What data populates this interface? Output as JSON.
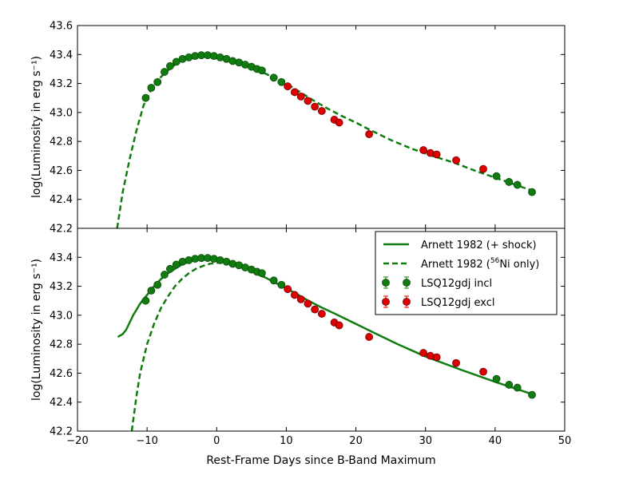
{
  "chart_data": {
    "type": "line",
    "xlabel": "Rest-Frame Days since B-Band Maximum",
    "xlim": [
      -20,
      50
    ],
    "xticks": [
      -20,
      -10,
      0,
      10,
      20,
      30,
      40,
      50
    ],
    "xtick_labels": [
      "−20",
      "−10",
      "0",
      "10",
      "20",
      "30",
      "40",
      "50"
    ],
    "colors": {
      "green": "#107c10",
      "red": "#e00000",
      "green_edge": "#0a4a0a",
      "red_edge": "#6a0000"
    },
    "panels": [
      {
        "id": "top",
        "ylabel": "log(Luminosity in erg s⁻¹)",
        "ylim": [
          42.2,
          43.6
        ],
        "yticks": [
          42.2,
          42.4,
          42.6,
          42.8,
          43.0,
          43.2,
          43.4,
          43.6
        ],
        "ytick_labels": [
          "42.2",
          "42.4",
          "42.6",
          "42.8",
          "43.0",
          "43.2",
          "43.4",
          "43.6"
        ],
        "series": [
          {
            "name": "Arnett 1982 (56Ni only)",
            "style": "dashed",
            "color": "#107c10",
            "x": [
              -14.3,
              -13.5,
              -12.5,
              -11.5,
              -10.5,
              -9.5,
              -8.5,
              -7.5,
              -6.5,
              -5.5,
              -4.5,
              -3.5,
              -2.5,
              -1.5,
              -0.5,
              0.5,
              1.5,
              2.5,
              3.5,
              4.5,
              5.5,
              6.5,
              8,
              10,
              12,
              14,
              16,
              18,
              20,
              22,
              25,
              28,
              31,
              34,
              37,
              40,
              43,
              45.3
            ],
            "y": [
              42.2,
              42.45,
              42.68,
              42.88,
              43.05,
              43.15,
              43.22,
              43.27,
              43.31,
              43.35,
              43.37,
              43.385,
              43.393,
              43.395,
              43.39,
              43.38,
              43.37,
              43.36,
              43.345,
              43.325,
              43.3,
              43.28,
              43.245,
              43.2,
              43.14,
              43.08,
              43.025,
              42.975,
              42.93,
              42.88,
              42.81,
              42.75,
              42.7,
              42.655,
              42.6,
              42.55,
              42.5,
              42.46
            ]
          }
        ]
      },
      {
        "id": "bottom",
        "ylabel": "log(Luminosity in erg s⁻¹)",
        "ylim": [
          42.2,
          43.6
        ],
        "yticks": [
          42.2,
          42.4,
          42.6,
          42.8,
          43.0,
          43.2,
          43.4
        ],
        "ytick_labels": [
          "42.2",
          "42.4",
          "42.6",
          "42.8",
          "43.0",
          "43.2",
          "43.4"
        ],
        "series": [
          {
            "name": "Arnett 1982 (+ shock)",
            "style": "solid",
            "color": "#107c10",
            "x": [
              -14.2,
              -13.5,
              -13,
              -12,
              -11,
              -10,
              -9,
              -8,
              -7,
              -6,
              -5,
              -4,
              -3,
              -2,
              -1,
              0,
              1,
              2,
              3,
              4,
              5,
              6,
              7,
              9,
              11,
              13,
              15,
              17,
              20,
              23,
              26,
              30,
              35,
              40,
              45.3
            ],
            "y": [
              42.85,
              42.87,
              42.9,
              43.0,
              43.08,
              43.14,
              43.2,
              43.25,
              43.29,
              43.32,
              43.35,
              43.37,
              43.385,
              43.39,
              43.39,
              43.385,
              43.375,
              43.36,
              43.345,
              43.325,
              43.305,
              43.28,
              43.26,
              43.21,
              43.16,
              43.105,
              43.055,
              43.01,
              42.94,
              42.87,
              42.8,
              42.715,
              42.625,
              42.54,
              42.455
            ]
          },
          {
            "name": "Arnett 1982 (56Ni only)",
            "style": "dashed",
            "color": "#107c10",
            "x": [
              -12.2,
              -11.5,
              -11,
              -10,
              -9,
              -8,
              -7,
              -6,
              -5,
              -4,
              -3,
              -2,
              -1,
              0,
              1,
              2,
              3,
              4,
              5,
              6
            ],
            "y": [
              42.2,
              42.45,
              42.6,
              42.8,
              42.94,
              43.05,
              43.13,
              43.2,
              43.25,
              43.29,
              43.32,
              43.34,
              43.355,
              43.362,
              43.362,
              43.355,
              43.345,
              43.33,
              43.315,
              43.295
            ]
          }
        ]
      }
    ],
    "points": {
      "incl": {
        "name": "LSQ12gdj incl",
        "color": "#107c10",
        "x": [
          -10.2,
          -9.4,
          -8.5,
          -7.5,
          -6.7,
          -5.8,
          -4.9,
          -4.0,
          -3.1,
          -2.2,
          -1.3,
          -0.4,
          0.5,
          1.4,
          2.3,
          3.2,
          4.1,
          5.0,
          5.8,
          6.5,
          8.2,
          9.3,
          40.2,
          42.0,
          43.2,
          45.3
        ],
        "y": [
          43.1,
          43.17,
          43.21,
          43.28,
          43.32,
          43.35,
          43.37,
          43.38,
          43.39,
          43.395,
          43.395,
          43.39,
          43.38,
          43.37,
          43.355,
          43.345,
          43.33,
          43.315,
          43.3,
          43.29,
          43.24,
          43.21,
          42.56,
          42.52,
          42.5,
          42.45
        ]
      },
      "excl": {
        "name": "LSQ12gdj excl",
        "color": "#e00000",
        "x": [
          10.2,
          11.2,
          12.1,
          13.1,
          14.1,
          15.1,
          16.9,
          17.6,
          21.9,
          29.7,
          30.7,
          31.6,
          34.4,
          38.3
        ],
        "y": [
          43.18,
          43.14,
          43.11,
          43.08,
          43.04,
          43.01,
          42.95,
          42.93,
          42.85,
          42.74,
          42.72,
          42.71,
          42.67,
          42.61
        ]
      }
    },
    "legend": {
      "location": "top-right of bottom panel",
      "entries": [
        {
          "label": "Arnett 1982 (+ shock)",
          "kind": "solid-line"
        },
        {
          "label": "Arnett 1982 (",
          "sup": "56",
          "suffix": "Ni only)",
          "kind": "dashed-line"
        },
        {
          "label": "LSQ12gdj incl",
          "kind": "green-point"
        },
        {
          "label": "LSQ12gdj excl",
          "kind": "red-point"
        }
      ]
    }
  }
}
